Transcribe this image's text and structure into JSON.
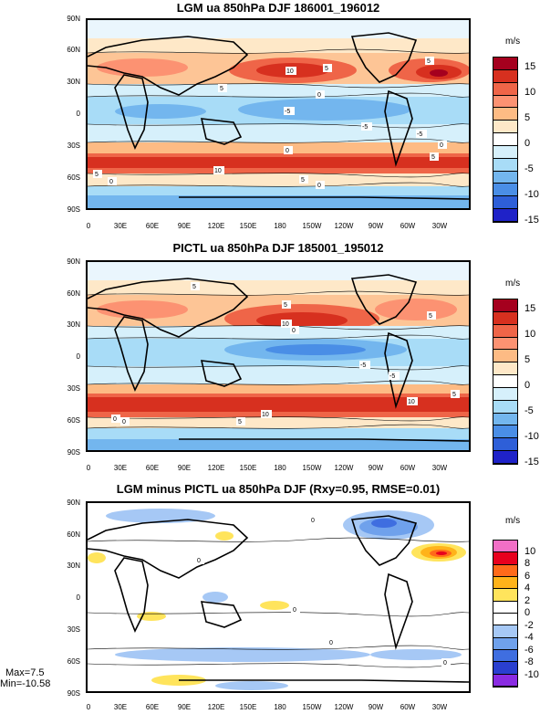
{
  "panels": [
    {
      "title": "LGM ua 850hPa DJF 186001_196012",
      "unit": "m/s",
      "colorbar_labels": [
        "15",
        "10",
        "5",
        "0",
        "-5",
        "-10",
        "-15"
      ],
      "colorbar_colors": [
        "#a5001e",
        "#d7301f",
        "#ef6548",
        "#fc9272",
        "#fdbb84",
        "#fee8c8",
        "#ffffff",
        "#d6f0fb",
        "#a8dcf7",
        "#73b6ee",
        "#4a8ee6",
        "#2e5fd8",
        "#1f22c8"
      ]
    },
    {
      "title": "PICTL ua 850hPa DJF 185001_195012",
      "unit": "m/s",
      "colorbar_labels": [
        "15",
        "10",
        "5",
        "0",
        "-5",
        "-10",
        "-15"
      ],
      "colorbar_colors": [
        "#a5001e",
        "#d7301f",
        "#ef6548",
        "#fc9272",
        "#fdbb84",
        "#fee8c8",
        "#ffffff",
        "#d6f0fb",
        "#a8dcf7",
        "#73b6ee",
        "#4a8ee6",
        "#2e5fd8",
        "#1f22c8"
      ]
    },
    {
      "title": "LGM minus PICTL ua 850hPa DJF (Rxy=0.95, RMSE=0.01)",
      "unit": "m/s",
      "colorbar_labels": [
        "10",
        "8",
        "6",
        "4",
        "2",
        "0",
        "-2",
        "-4",
        "-6",
        "-8",
        "-10"
      ],
      "colorbar_colors": [
        "#f26fc6",
        "#e8001e",
        "#ff6a1a",
        "#ffb31a",
        "#ffe45c",
        "#ffffff",
        "#ffffff",
        "#a6c8f5",
        "#6fa1ec",
        "#3f6ee0",
        "#2a3fd0",
        "#8a2be2"
      ],
      "max_label": "Max=7.5",
      "min_label": "Min=-10.58"
    }
  ],
  "lat_labels": [
    "90N",
    "60N",
    "30N",
    "0",
    "30S",
    "60S",
    "90S"
  ],
  "lon_labels": [
    "0",
    "30E",
    "60E",
    "90E",
    "120E",
    "150E",
    "180",
    "150W",
    "120W",
    "90W",
    "60W",
    "30W"
  ],
  "contour_labels_p1": [
    "5",
    "5",
    "10",
    "5",
    "-5",
    "0",
    "-5",
    "0",
    "-5",
    "0",
    "10",
    "5",
    "5",
    "0",
    "5",
    "0"
  ],
  "contour_labels_p2": [
    "5",
    "5",
    "10",
    "5",
    "-5",
    "0",
    "-5",
    "0",
    "10",
    "5",
    "10",
    "5",
    "0"
  ],
  "contour_labels_p3": [
    "0",
    "0",
    "0",
    "0",
    "0"
  ]
}
